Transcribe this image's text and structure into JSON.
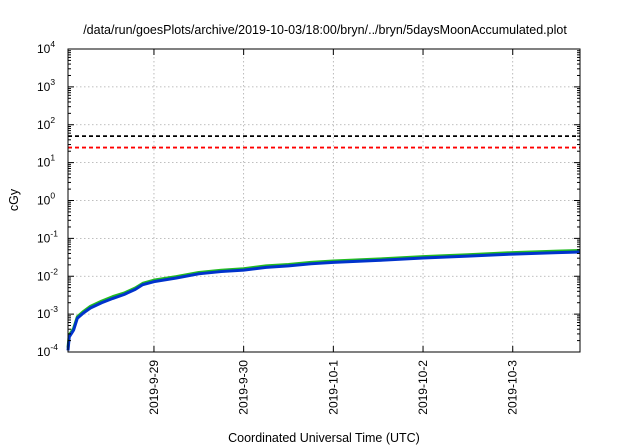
{
  "chart_data": {
    "type": "line",
    "title": "/data/run/goesPlots/archive/2019-10-03/18:00/bryn/../bryn/5daysMoonAccumulated.plot",
    "xlabel": "Coordinated Universal Time (UTC)",
    "ylabel": "cGy",
    "yscale": "log",
    "ylim": [
      0.0001,
      10000
    ],
    "yticks": [
      {
        "base": "10",
        "exp": "-4",
        "value": 0.0001
      },
      {
        "base": "10",
        "exp": "-3",
        "value": 0.001
      },
      {
        "base": "10",
        "exp": "-2",
        "value": 0.01
      },
      {
        "base": "10",
        "exp": "-1",
        "value": 0.1
      },
      {
        "base": "10",
        "exp": "0",
        "value": 1
      },
      {
        "base": "10",
        "exp": "1",
        "value": 10
      },
      {
        "base": "10",
        "exp": "2",
        "value": 100
      },
      {
        "base": "10",
        "exp": "3",
        "value": 1000
      },
      {
        "base": "10",
        "exp": "4",
        "value": 10000
      }
    ],
    "xlim": [
      "2019-09-28T01:00",
      "2019-10-03T18:00"
    ],
    "xticks": [
      {
        "label": "2019-9-29",
        "date": "2019-09-29T00:00"
      },
      {
        "label": "2019-9-30",
        "date": "2019-09-30T00:00"
      },
      {
        "label": "2019-10-1",
        "date": "2019-10-01T00:00"
      },
      {
        "label": "2019-10-2",
        "date": "2019-10-02T00:00"
      },
      {
        "label": "2019-10-3",
        "date": "2019-10-03T00:00"
      }
    ],
    "grid": true,
    "legend": "none",
    "reference_lines": [
      {
        "value": 50,
        "color": "#000000",
        "style": "dashed"
      },
      {
        "value": 25,
        "color": "#ff0000",
        "style": "dashed"
      }
    ],
    "series": [
      {
        "color": "#22bb22",
        "points": [
          [
            "2019-09-28T01:00",
            0.00013
          ],
          [
            "2019-09-28T01:20",
            0.00028
          ],
          [
            "2019-09-28T02:30",
            0.00042
          ],
          [
            "2019-09-28T03:30",
            0.00085
          ],
          [
            "2019-09-28T05:00",
            0.00115
          ],
          [
            "2019-09-28T07:00",
            0.0016
          ],
          [
            "2019-09-28T10:00",
            0.0022
          ],
          [
            "2019-09-28T13:00",
            0.0029
          ],
          [
            "2019-09-28T16:00",
            0.0036
          ],
          [
            "2019-09-28T19:00",
            0.0049
          ],
          [
            "2019-09-28T21:00",
            0.0065
          ],
          [
            "2019-09-29T00:00",
            0.0079
          ],
          [
            "2019-09-29T06:00",
            0.0098
          ],
          [
            "2019-09-29T12:00",
            0.0126
          ],
          [
            "2019-09-29T18:00",
            0.0144
          ],
          [
            "2019-09-30T00:00",
            0.0158
          ],
          [
            "2019-09-30T06:00",
            0.0188
          ],
          [
            "2019-09-30T12:00",
            0.0205
          ],
          [
            "2019-09-30T18:00",
            0.0232
          ],
          [
            "2019-10-01T00:00",
            0.0252
          ],
          [
            "2019-10-01T12:00",
            0.0285
          ],
          [
            "2019-10-02T00:00",
            0.033
          ],
          [
            "2019-10-02T12:00",
            0.037
          ],
          [
            "2019-10-03T00:00",
            0.042
          ],
          [
            "2019-10-03T12:00",
            0.046
          ],
          [
            "2019-10-03T18:00",
            0.048
          ]
        ]
      },
      {
        "color": "#0033cc",
        "points": [
          [
            "2019-09-28T01:00",
            0.00011
          ],
          [
            "2019-09-28T01:20",
            0.00025
          ],
          [
            "2019-09-28T02:30",
            0.00038
          ],
          [
            "2019-09-28T03:30",
            0.00078
          ],
          [
            "2019-09-28T05:00",
            0.00105
          ],
          [
            "2019-09-28T07:00",
            0.00145
          ],
          [
            "2019-09-28T10:00",
            0.002
          ],
          [
            "2019-09-28T13:00",
            0.0026
          ],
          [
            "2019-09-28T16:00",
            0.0033
          ],
          [
            "2019-09-28T19:00",
            0.0045
          ],
          [
            "2019-09-28T21:00",
            0.006
          ],
          [
            "2019-09-29T00:00",
            0.0072
          ],
          [
            "2019-09-29T06:00",
            0.009
          ],
          [
            "2019-09-29T12:00",
            0.0116
          ],
          [
            "2019-09-29T18:00",
            0.0133
          ],
          [
            "2019-09-30T00:00",
            0.0145
          ],
          [
            "2019-09-30T06:00",
            0.0172
          ],
          [
            "2019-09-30T12:00",
            0.0188
          ],
          [
            "2019-09-30T18:00",
            0.0213
          ],
          [
            "2019-10-01T00:00",
            0.0232
          ],
          [
            "2019-10-01T12:00",
            0.0262
          ],
          [
            "2019-10-02T00:00",
            0.0303
          ],
          [
            "2019-10-02T12:00",
            0.034
          ],
          [
            "2019-10-03T00:00",
            0.0385
          ],
          [
            "2019-10-03T12:00",
            0.042
          ],
          [
            "2019-10-03T18:00",
            0.0438
          ]
        ]
      }
    ]
  }
}
